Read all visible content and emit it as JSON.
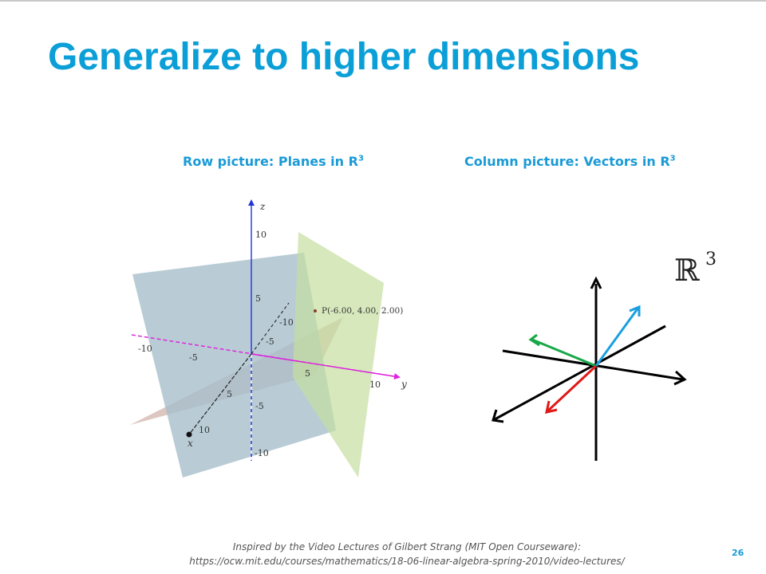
{
  "slide": {
    "title": "Generalize to higher dimensions",
    "page_number": "26",
    "accent_color": "#0b9fd8"
  },
  "row_picture": {
    "caption_text": "Row picture: Planes in R",
    "caption_sup": "3",
    "axes": {
      "x_label": "x",
      "y_label": "y",
      "z_label": "z"
    },
    "tick_labels": {
      "z_pos_10": "10",
      "z_pos_5": "5",
      "z_neg_5": "-5",
      "z_neg_10": "-10",
      "y_neg_10": "-10",
      "y_neg_5": "-5",
      "y_pos_5": "5",
      "y_pos_10": "10",
      "x_neg_10": "-10",
      "x_neg_5": "-5",
      "x_pos_5": "5",
      "x_pos_10": "10"
    },
    "point_label": "P(-6.00, 4.00, 2.00)",
    "plane_colors": [
      "#a8bfcb",
      "#c5dea0",
      "#d2b6ac"
    ]
  },
  "column_picture": {
    "caption_text": "Column picture: Vectors in R",
    "caption_sup": "3",
    "space_symbol": "ℝ",
    "space_exponent": "3",
    "vector_colors": [
      "#1aa0e0",
      "#18a848",
      "#e01818"
    ]
  },
  "footer": {
    "line1": "Inspired by the Video Lectures of Gilbert Strang (MIT Open Courseware):",
    "line2": "https://ocw.mit.edu/courses/mathematics/18-06-linear-algebra-spring-2010/video-lectures/"
  }
}
